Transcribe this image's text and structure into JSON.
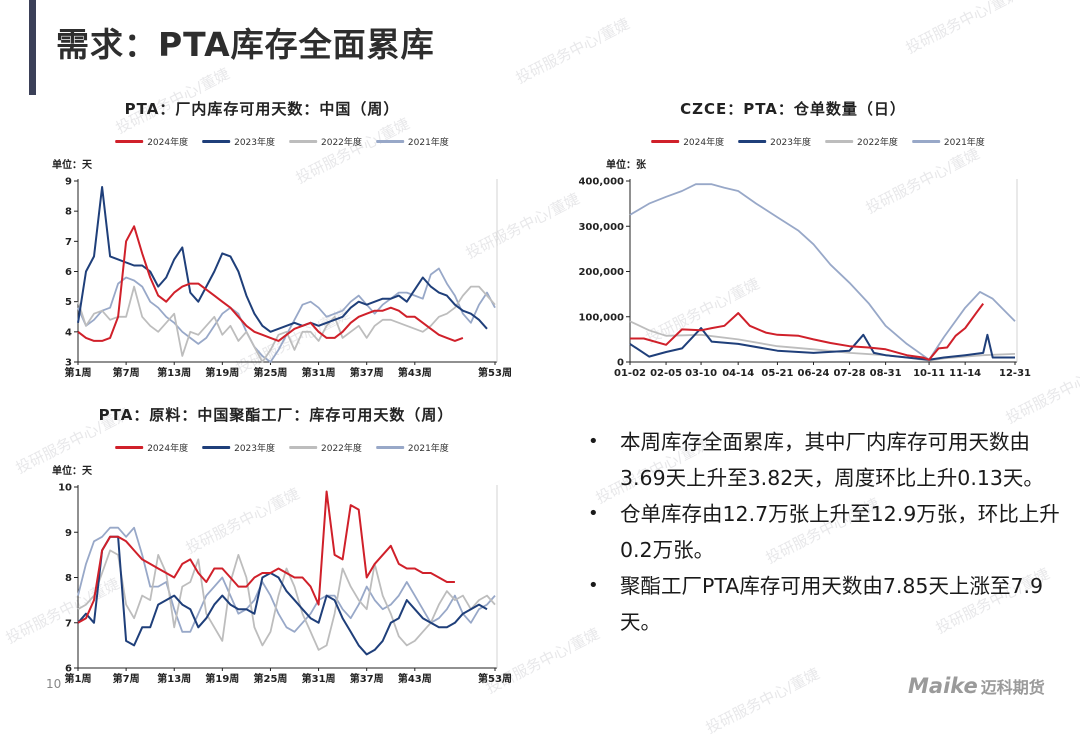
{
  "page": {
    "title": "需求：PTA库存全面累库",
    "page_number": "10",
    "logo_en": "Maike",
    "logo_cn": "迈科期货",
    "watermark": "投研服务中心/董婕"
  },
  "series_styles": [
    {
      "name": "2024年度",
      "color": "#d0202a"
    },
    {
      "name": "2023年度",
      "color": "#1f3f7a"
    },
    {
      "name": "2022年度",
      "color": "#bdbdbd"
    },
    {
      "name": "2021年度",
      "color": "#98a8c8"
    }
  ],
  "bullets": [
    "本周库存全面累库，其中厂内库存可用天数由3.69天上升至3.82天，周度环比上升0.13天。",
    "仓单库存由12.7万张上升至12.9万张，环比上升0.2万张。",
    "聚酯工厂PTA库存可用天数由7.85天上涨至7.9天。"
  ],
  "chart_data": [
    {
      "id": "factory",
      "type": "line",
      "title": "PTA：厂内库存可用天数：中国（周）",
      "unit": "单位：天",
      "x_unit": "week",
      "xlim": [
        1,
        53
      ],
      "x_ticks": [
        "第1周",
        "第7周",
        "第13周",
        "第19周",
        "第25周",
        "第31周",
        "第37周",
        "第43周",
        "第53周"
      ],
      "ylim": [
        3,
        9
      ],
      "y_ticks": [
        "3",
        "4",
        "5",
        "6",
        "7",
        "8",
        "9"
      ],
      "series": [
        {
          "name": "2021年度",
          "values": [
            4.8,
            4.2,
            4.4,
            4.7,
            4.8,
            5.6,
            5.8,
            5.7,
            5.5,
            5.0,
            4.8,
            4.5,
            4.3,
            4.0,
            3.8,
            3.6,
            3.8,
            4.2,
            4.6,
            4.8,
            4.6,
            4.0,
            3.5,
            3.2,
            3.0,
            3.4,
            3.9,
            4.4,
            4.9,
            5.0,
            4.8,
            4.5,
            4.6,
            4.7,
            5.0,
            5.2,
            4.9,
            4.6,
            4.9,
            5.1,
            5.3,
            5.3,
            5.2,
            5.1,
            5.9,
            6.1,
            5.6,
            5.2,
            4.6,
            4.3,
            4.9,
            5.3,
            4.8
          ]
        },
        {
          "name": "2022年度",
          "values": [
            5.0,
            4.2,
            4.6,
            4.7,
            4.4,
            4.5,
            4.5,
            5.5,
            4.5,
            4.2,
            4.0,
            4.3,
            4.6,
            3.2,
            4.0,
            3.9,
            4.2,
            4.5,
            3.9,
            4.2,
            3.7,
            4.0,
            3.5,
            3.0,
            3.4,
            3.9,
            4.0,
            3.4,
            4.0,
            4.0,
            3.7,
            4.2,
            4.5,
            3.8,
            4.0,
            4.2,
            3.8,
            4.2,
            4.4,
            4.4,
            4.3,
            4.2,
            4.1,
            4.0,
            4.2,
            4.5,
            4.6,
            4.8,
            5.2,
            5.5,
            5.5,
            5.2,
            4.9
          ]
        },
        {
          "name": "2023年度",
          "values": [
            4.3,
            6.0,
            6.5,
            8.8,
            6.5,
            6.4,
            6.3,
            6.2,
            6.2,
            6.0,
            5.5,
            5.8,
            6.4,
            6.8,
            5.3,
            5.0,
            5.5,
            6.0,
            6.6,
            6.5,
            6.0,
            5.2,
            4.6,
            4.2,
            4.0,
            4.1,
            4.2,
            4.3,
            4.2,
            4.3,
            4.2,
            4.3,
            4.4,
            4.5,
            4.8,
            5.0,
            4.9,
            5.0,
            5.1,
            5.1,
            5.2,
            5.0,
            5.4,
            5.8,
            5.5,
            5.3,
            5.2,
            4.9,
            4.7,
            4.6,
            4.4,
            4.1
          ]
        },
        {
          "name": "2024年度",
          "values": [
            4.0,
            3.8,
            3.7,
            3.7,
            3.8,
            4.5,
            7.0,
            7.5,
            6.6,
            5.8,
            5.2,
            5.0,
            5.3,
            5.5,
            5.6,
            5.6,
            5.4,
            5.2,
            5.0,
            4.8,
            4.5,
            4.2,
            4.0,
            3.9,
            3.8,
            3.7,
            3.9,
            4.1,
            4.2,
            4.3,
            4.0,
            3.8,
            3.8,
            4.0,
            4.3,
            4.5,
            4.6,
            4.7,
            4.7,
            4.8,
            4.7,
            4.5,
            4.5,
            4.3,
            4.1,
            3.9,
            3.8,
            3.7,
            3.8
          ]
        }
      ]
    },
    {
      "id": "warrant",
      "type": "line",
      "title": "CZCE：PTA：仓单数量（日）",
      "unit": "单位：张",
      "x_unit": "date",
      "xlim": [
        "01-02",
        "12-31"
      ],
      "x_ticks": [
        "01-02",
        "02-05",
        "03-10",
        "04-14",
        "05-21",
        "06-24",
        "07-28",
        "08-31",
        "10-11",
        "11-14",
        "12-31"
      ],
      "ylim": [
        0,
        400000
      ],
      "y_ticks": [
        "0",
        "100,000",
        "200,000",
        "300,000",
        "400,000"
      ],
      "series": [
        {
          "name": "2021年度",
          "points": [
            [
              "01-02",
              325000
            ],
            [
              "01-20",
              350000
            ],
            [
              "02-05",
              365000
            ],
            [
              "02-20",
              378000
            ],
            [
              "03-05",
              393000
            ],
            [
              "03-20",
              393000
            ],
            [
              "04-01",
              385000
            ],
            [
              "04-14",
              378000
            ],
            [
              "05-01",
              350000
            ],
            [
              "05-21",
              320000
            ],
            [
              "06-10",
              290000
            ],
            [
              "06-24",
              260000
            ],
            [
              "07-10",
              215000
            ],
            [
              "07-28",
              175000
            ],
            [
              "08-15",
              130000
            ],
            [
              "08-31",
              80000
            ],
            [
              "09-20",
              40000
            ],
            [
              "10-11",
              5000
            ],
            [
              "10-25",
              55000
            ],
            [
              "11-14",
              120000
            ],
            [
              "11-28",
              155000
            ],
            [
              "12-10",
              140000
            ],
            [
              "12-31",
              90000
            ]
          ]
        },
        {
          "name": "2022年度",
          "points": [
            [
              "01-02",
              90000
            ],
            [
              "01-20",
              70000
            ],
            [
              "02-05",
              58000
            ],
            [
              "03-10",
              60000
            ],
            [
              "04-14",
              50000
            ],
            [
              "05-21",
              35000
            ],
            [
              "06-24",
              28000
            ],
            [
              "07-28",
              20000
            ],
            [
              "08-31",
              15000
            ],
            [
              "09-20",
              10000
            ],
            [
              "10-11",
              3000
            ],
            [
              "10-25",
              8000
            ],
            [
              "11-14",
              12000
            ],
            [
              "12-01",
              15000
            ],
            [
              "12-31",
              18000
            ]
          ]
        },
        {
          "name": "2023年度",
          "points": [
            [
              "01-02",
              40000
            ],
            [
              "01-20",
              12000
            ],
            [
              "02-05",
              22000
            ],
            [
              "02-20",
              30000
            ],
            [
              "03-10",
              75000
            ],
            [
              "03-20",
              45000
            ],
            [
              "04-14",
              40000
            ],
            [
              "05-21",
              25000
            ],
            [
              "06-24",
              20000
            ],
            [
              "07-28",
              25000
            ],
            [
              "08-10",
              60000
            ],
            [
              "08-20",
              20000
            ],
            [
              "08-31",
              15000
            ],
            [
              "09-20",
              10000
            ],
            [
              "10-11",
              5000
            ],
            [
              "10-25",
              10000
            ],
            [
              "11-14",
              15000
            ],
            [
              "12-01",
              20000
            ],
            [
              "12-05",
              60000
            ],
            [
              "12-10",
              10000
            ],
            [
              "12-31",
              10000
            ]
          ]
        },
        {
          "name": "2024年度",
          "points": [
            [
              "01-02",
              52000
            ],
            [
              "01-15",
              52000
            ],
            [
              "02-05",
              38000
            ],
            [
              "02-20",
              72000
            ],
            [
              "03-10",
              70000
            ],
            [
              "03-20",
              75000
            ],
            [
              "04-01",
              80000
            ],
            [
              "04-14",
              108000
            ],
            [
              "04-25",
              80000
            ],
            [
              "05-10",
              65000
            ],
            [
              "05-21",
              60000
            ],
            [
              "06-10",
              58000
            ],
            [
              "06-24",
              50000
            ],
            [
              "07-10",
              42000
            ],
            [
              "07-28",
              35000
            ],
            [
              "08-15",
              32000
            ],
            [
              "08-31",
              28000
            ],
            [
              "09-20",
              15000
            ],
            [
              "10-05",
              10000
            ],
            [
              "10-11",
              5000
            ],
            [
              "10-20",
              30000
            ],
            [
              "10-28",
              32000
            ],
            [
              "11-05",
              58000
            ],
            [
              "11-14",
              75000
            ],
            [
              "11-25",
              110000
            ],
            [
              "12-01",
              129000
            ]
          ]
        }
      ]
    },
    {
      "id": "polyester",
      "type": "line",
      "title": "PTA：原料：中国聚酯工厂：库存可用天数（周）",
      "unit": "单位：天",
      "x_unit": "week",
      "xlim": [
        1,
        53
      ],
      "x_ticks": [
        "第1周",
        "第7周",
        "第13周",
        "第19周",
        "第25周",
        "第31周",
        "第37周",
        "第43周",
        "第53周"
      ],
      "ylim": [
        6,
        10
      ],
      "y_ticks": [
        "6",
        "7",
        "8",
        "9",
        "10"
      ],
      "series": [
        {
          "name": "2021年度",
          "values": [
            7.6,
            8.3,
            8.8,
            8.9,
            9.1,
            9.1,
            8.9,
            9.1,
            8.5,
            7.8,
            7.8,
            7.9,
            7.3,
            6.8,
            6.8,
            7.2,
            7.6,
            7.8,
            8.0,
            7.6,
            7.2,
            7.3,
            7.5,
            7.9,
            7.6,
            7.2,
            6.9,
            6.8,
            7.0,
            7.2,
            7.5,
            7.6,
            7.6,
            7.3,
            7.1,
            7.4,
            7.8,
            7.5,
            7.3,
            7.4,
            7.6,
            7.9,
            7.6,
            7.3,
            7.0,
            7.1,
            7.3,
            7.6,
            7.2,
            7.0,
            7.3,
            7.4,
            7.6
          ]
        },
        {
          "name": "2022年度",
          "values": [
            7.3,
            7.4,
            7.6,
            8.1,
            8.6,
            8.5,
            7.4,
            7.1,
            7.6,
            7.5,
            8.5,
            8.1,
            6.9,
            7.8,
            7.9,
            8.4,
            7.2,
            6.9,
            6.6,
            7.9,
            8.5,
            8.0,
            6.9,
            6.5,
            6.8,
            7.6,
            8.2,
            7.8,
            7.2,
            6.8,
            6.4,
            6.5,
            7.2,
            8.2,
            7.8,
            7.5,
            7.3,
            8.3,
            7.6,
            7.2,
            6.7,
            6.5,
            6.6,
            6.8,
            7.0,
            7.4,
            7.7,
            7.5,
            7.6,
            7.3,
            7.5,
            7.6,
            7.4
          ]
        },
        {
          "name": "2023年度",
          "values": [
            7.0,
            7.2,
            7.0,
            8.6,
            8.9,
            8.9,
            6.6,
            6.5,
            6.9,
            6.9,
            7.4,
            7.5,
            7.6,
            7.4,
            7.3,
            6.9,
            7.1,
            7.4,
            7.6,
            7.4,
            7.3,
            7.3,
            7.2,
            8.0,
            8.1,
            8.0,
            7.7,
            7.5,
            7.3,
            7.1,
            7.0,
            7.6,
            7.5,
            7.1,
            6.8,
            6.5,
            6.3,
            6.4,
            6.6,
            7.0,
            7.1,
            7.5,
            7.3,
            7.1,
            7.0,
            6.9,
            6.9,
            7.0,
            7.2,
            7.3,
            7.4,
            7.3
          ]
        },
        {
          "name": "2024年度",
          "values": [
            7.0,
            7.1,
            7.5,
            8.6,
            8.9,
            8.9,
            8.8,
            8.6,
            8.4,
            8.3,
            8.2,
            8.1,
            8.0,
            8.3,
            8.4,
            8.1,
            7.9,
            8.2,
            8.2,
            8.0,
            7.8,
            7.8,
            8.0,
            8.1,
            8.1,
            8.2,
            8.1,
            8.0,
            8.0,
            7.8,
            7.4,
            9.9,
            8.5,
            8.4,
            9.6,
            9.5,
            8.0,
            8.3,
            8.5,
            8.7,
            8.3,
            8.2,
            8.2,
            8.1,
            8.1,
            8.0,
            7.9,
            7.9
          ]
        }
      ]
    }
  ]
}
